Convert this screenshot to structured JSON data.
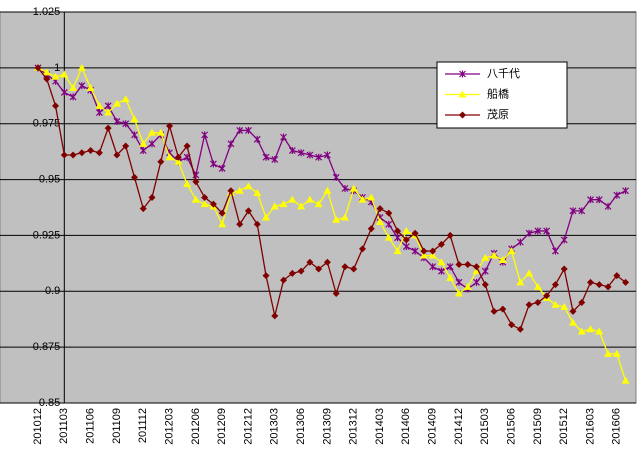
{
  "chart_data": {
    "type": "line",
    "categories": [
      "201012",
      null,
      null,
      "201103",
      null,
      null,
      "201106",
      null,
      null,
      "201109",
      null,
      null,
      "201112",
      null,
      null,
      "201203",
      null,
      null,
      "201206",
      null,
      null,
      "201209",
      null,
      null,
      "201212",
      null,
      null,
      "201303",
      null,
      null,
      "201306",
      null,
      null,
      "201309",
      null,
      null,
      "201312",
      null,
      null,
      "201403",
      null,
      null,
      "201406",
      null,
      null,
      "201409",
      null,
      null,
      "201412",
      null,
      null,
      "201503",
      null,
      null,
      "201506",
      null,
      null,
      "201509",
      null,
      null,
      "201512",
      null,
      null,
      "201603",
      null,
      null,
      "201606",
      null
    ],
    "series": [
      {
        "name": "八千代",
        "color": "#800080",
        "marker": "star",
        "values": [
          1.0,
          0.997,
          0.994,
          0.989,
          0.987,
          0.992,
          0.99,
          0.98,
          0.983,
          0.976,
          0.975,
          0.97,
          0.963,
          0.966,
          0.97,
          0.962,
          0.958,
          0.96,
          0.952,
          0.97,
          0.957,
          0.955,
          0.966,
          0.972,
          0.972,
          0.968,
          0.96,
          0.959,
          0.969,
          0.963,
          0.962,
          0.961,
          0.96,
          0.961,
          0.951,
          0.946,
          0.945,
          0.942,
          0.94,
          0.933,
          0.93,
          0.924,
          0.92,
          0.918,
          0.915,
          0.911,
          0.909,
          0.911,
          0.904,
          0.901,
          0.904,
          0.909,
          0.917,
          0.913,
          0.919,
          0.922,
          0.926,
          0.927,
          0.927,
          0.918,
          0.923,
          0.936,
          0.936,
          0.941,
          0.941,
          0.938,
          0.943,
          0.945
        ]
      },
      {
        "name": "船橋",
        "color": "#ffff00",
        "marker": "triangle",
        "values": [
          1.0,
          0.998,
          0.996,
          0.997,
          0.991,
          1.0,
          0.991,
          0.983,
          0.98,
          0.984,
          0.986,
          0.977,
          0.966,
          0.971,
          0.971,
          0.96,
          0.958,
          0.948,
          0.941,
          0.939,
          0.938,
          0.93,
          0.944,
          0.945,
          0.947,
          0.944,
          0.933,
          0.938,
          0.939,
          0.941,
          0.938,
          0.941,
          0.939,
          0.945,
          0.932,
          0.933,
          0.946,
          0.941,
          0.942,
          0.931,
          0.924,
          0.918,
          0.927,
          0.925,
          0.916,
          0.916,
          0.913,
          0.906,
          0.899,
          0.902,
          0.909,
          0.915,
          0.916,
          0.914,
          0.918,
          0.904,
          0.908,
          0.902,
          0.897,
          0.894,
          0.893,
          0.886,
          0.882,
          0.883,
          0.882,
          0.872,
          0.872,
          0.86
        ]
      },
      {
        "name": "茂原",
        "color": "#800000",
        "marker": "diamond",
        "values": [
          1.0,
          0.995,
          0.983,
          0.961,
          0.961,
          0.962,
          0.963,
          0.962,
          0.973,
          0.961,
          0.965,
          0.951,
          0.937,
          0.942,
          0.958,
          0.974,
          0.96,
          0.965,
          0.949,
          0.942,
          0.939,
          0.935,
          0.945,
          0.93,
          0.936,
          0.93,
          0.907,
          0.889,
          0.905,
          0.908,
          0.909,
          0.913,
          0.91,
          0.913,
          0.899,
          0.911,
          0.91,
          0.919,
          0.928,
          0.937,
          0.935,
          0.927,
          0.923,
          0.926,
          0.918,
          0.918,
          0.921,
          0.925,
          0.912,
          0.912,
          0.911,
          0.903,
          0.891,
          0.892,
          0.885,
          0.883,
          0.894,
          0.895,
          0.898,
          0.903,
          0.91,
          0.891,
          0.895,
          0.904,
          0.903,
          0.902,
          0.907,
          0.904
        ]
      }
    ],
    "ylim": [
      0.85,
      1.025
    ],
    "yticks": [
      0.85,
      0.875,
      0.9,
      0.925,
      0.95,
      0.975,
      1,
      1.025
    ],
    "grid": true,
    "legend": "upper right"
  }
}
